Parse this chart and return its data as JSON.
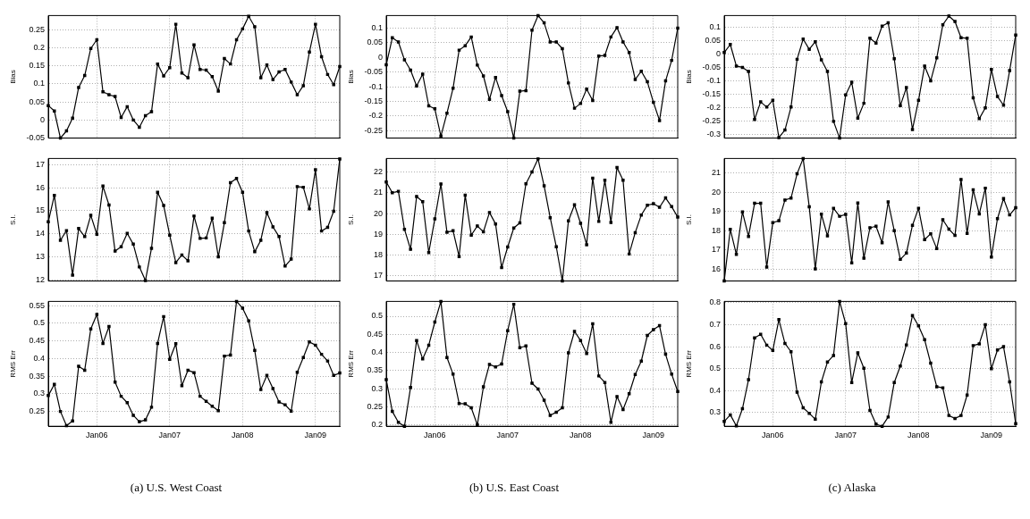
{
  "chart_data": [
    {
      "type": "line",
      "ylabel": "Bias",
      "color": "#000000",
      "marker": "square",
      "grid": true,
      "tick_labels": "y",
      "xlim": [
        "2005-05",
        "2009-05"
      ],
      "xticks": [
        {
          "value": "2006-01",
          "label": null
        },
        {
          "value": "2007-01",
          "label": null
        },
        {
          "value": "2008-01",
          "label": null
        },
        {
          "value": "2009-01",
          "label": null
        }
      ],
      "ylim": [
        -0.05,
        0.289
      ],
      "yticks": [
        -0.05,
        0,
        0.05,
        0.1,
        0.15,
        0.2,
        0.25
      ],
      "x": [
        "2005-05",
        "2005-06",
        "2005-07",
        "2005-08",
        "2005-09",
        "2005-10",
        "2005-11",
        "2005-12",
        "2006-01",
        "2006-02",
        "2006-03",
        "2006-04",
        "2006-05",
        "2006-06",
        "2006-07",
        "2006-08",
        "2006-09",
        "2006-10",
        "2006-11",
        "2006-12",
        "2007-01",
        "2007-02",
        "2007-03",
        "2007-04",
        "2007-05",
        "2007-06",
        "2007-07",
        "2007-08",
        "2007-09",
        "2007-10",
        "2007-11",
        "2007-12",
        "2008-01",
        "2008-02",
        "2008-03",
        "2008-04",
        "2008-05",
        "2008-06",
        "2008-07",
        "2008-08",
        "2008-09",
        "2008-10",
        "2008-11",
        "2008-12",
        "2009-01",
        "2009-02",
        "2009-03",
        "2009-04",
        "2009-05"
      ],
      "values": [
        0.04,
        0.025,
        -0.05,
        -0.03,
        0.005,
        0.09,
        0.123,
        0.198,
        0.222,
        0.078,
        0.07,
        0.065,
        0.007,
        0.037,
        0,
        -0.02,
        0.012,
        0.023,
        0.155,
        0.122,
        0.145,
        0.265,
        0.13,
        0.117,
        0.208,
        0.14,
        0.138,
        0.12,
        0.08,
        0.17,
        0.155,
        0.222,
        0.252,
        0.287,
        0.258,
        0.117,
        0.152,
        0.112,
        0.133,
        0.14,
        0.105,
        0.07,
        0.095,
        0.188,
        0.265,
        0.175,
        0.126,
        0.098,
        0.148
      ]
    },
    {
      "type": "line",
      "ylabel": "Bias",
      "color": "#000000",
      "marker": "square",
      "grid": true,
      "tick_labels": "y",
      "xlim": [
        "2005-05",
        "2009-05"
      ],
      "xticks": [
        {
          "value": "2006-01",
          "label": null
        },
        {
          "value": "2007-01",
          "label": null
        },
        {
          "value": "2008-01",
          "label": null
        },
        {
          "value": "2009-01",
          "label": null
        }
      ],
      "ylim": [
        -0.275,
        0.143
      ],
      "yticks": [
        -0.25,
        -0.2,
        -0.15,
        -0.1,
        -0.05,
        0,
        0.05,
        0.1
      ],
      "x": [
        "2005-05",
        "2005-06",
        "2005-07",
        "2005-08",
        "2005-09",
        "2005-10",
        "2005-11",
        "2005-12",
        "2006-01",
        "2006-02",
        "2006-03",
        "2006-04",
        "2006-05",
        "2006-06",
        "2006-07",
        "2006-08",
        "2006-09",
        "2006-10",
        "2006-11",
        "2006-12",
        "2007-01",
        "2007-02",
        "2007-03",
        "2007-04",
        "2007-05",
        "2007-06",
        "2007-07",
        "2007-08",
        "2007-09",
        "2007-10",
        "2007-11",
        "2007-12",
        "2008-01",
        "2008-02",
        "2008-03",
        "2008-04",
        "2008-05",
        "2008-06",
        "2008-07",
        "2008-08",
        "2008-09",
        "2008-10",
        "2008-11",
        "2008-12",
        "2009-01",
        "2009-02",
        "2009-03",
        "2009-04",
        "2009-05"
      ],
      "values": [
        -0.025,
        0.067,
        0.053,
        -0.008,
        -0.043,
        -0.097,
        -0.057,
        -0.165,
        -0.175,
        -0.268,
        -0.19,
        -0.105,
        0.025,
        0.04,
        0.07,
        -0.026,
        -0.063,
        -0.143,
        -0.068,
        -0.13,
        -0.185,
        -0.275,
        -0.115,
        -0.113,
        0.093,
        0.143,
        0.118,
        0.053,
        0.053,
        0.03,
        -0.087,
        -0.173,
        -0.157,
        -0.108,
        -0.147,
        0.005,
        0.007,
        0.07,
        0.102,
        0.053,
        0.017,
        -0.075,
        -0.047,
        -0.083,
        -0.153,
        -0.215,
        -0.08,
        -0.01,
        0.1
      ]
    },
    {
      "type": "line",
      "ylabel": "Bias",
      "color": "#000000",
      "marker": "square",
      "grid": true,
      "tick_labels": "y",
      "xlim": [
        "2005-05",
        "2009-05"
      ],
      "xticks": [
        {
          "value": "2006-01",
          "label": null
        },
        {
          "value": "2007-01",
          "label": null
        },
        {
          "value": "2008-01",
          "label": null
        },
        {
          "value": "2009-01",
          "label": null
        }
      ],
      "ylim": [
        -0.312,
        0.142
      ],
      "yticks": [
        -0.3,
        -0.25,
        -0.2,
        -0.15,
        -0.1,
        -0.05,
        0,
        0.05,
        0.1
      ],
      "x": [
        "2005-05",
        "2005-06",
        "2005-07",
        "2005-08",
        "2005-09",
        "2005-10",
        "2005-11",
        "2005-12",
        "2006-01",
        "2006-02",
        "2006-03",
        "2006-04",
        "2006-05",
        "2006-06",
        "2006-07",
        "2006-08",
        "2006-09",
        "2006-10",
        "2006-11",
        "2006-12",
        "2007-01",
        "2007-02",
        "2007-03",
        "2007-04",
        "2007-05",
        "2007-06",
        "2007-07",
        "2007-08",
        "2007-09",
        "2007-10",
        "2007-11",
        "2007-12",
        "2008-01",
        "2008-02",
        "2008-03",
        "2008-04",
        "2008-05",
        "2008-06",
        "2008-07",
        "2008-08",
        "2008-09",
        "2008-10",
        "2008-11",
        "2008-12",
        "2009-01",
        "2009-02",
        "2009-03",
        "2009-04",
        "2009-05"
      ],
      "values": [
        0.005,
        0.035,
        -0.045,
        -0.05,
        -0.065,
        -0.243,
        -0.178,
        -0.197,
        -0.172,
        -0.31,
        -0.282,
        -0.197,
        -0.02,
        0.055,
        0.017,
        0.045,
        -0.022,
        -0.065,
        -0.25,
        -0.312,
        -0.152,
        -0.105,
        -0.238,
        -0.183,
        0.058,
        0.04,
        0.103,
        0.115,
        -0.018,
        -0.192,
        -0.125,
        -0.28,
        -0.172,
        -0.045,
        -0.1,
        -0.015,
        0.108,
        0.14,
        0.12,
        0.06,
        0.058,
        -0.163,
        -0.24,
        -0.2,
        -0.058,
        -0.158,
        -0.19,
        -0.062,
        0.07
      ]
    },
    {
      "type": "line",
      "ylabel": "S.I.",
      "color": "#000000",
      "marker": "square",
      "grid": true,
      "tick_labels": "y",
      "xlim": [
        "2005-05",
        "2009-05"
      ],
      "xticks": [
        {
          "value": "2006-01",
          "label": null
        },
        {
          "value": "2007-01",
          "label": null
        },
        {
          "value": "2008-01",
          "label": null
        },
        {
          "value": "2009-01",
          "label": null
        }
      ],
      "ylim": [
        11.95,
        17.27
      ],
      "yticks": [
        12,
        13,
        14,
        15,
        16,
        17
      ],
      "x": [
        "2005-05",
        "2005-06",
        "2005-07",
        "2005-08",
        "2005-09",
        "2005-10",
        "2005-11",
        "2005-12",
        "2006-01",
        "2006-02",
        "2006-03",
        "2006-04",
        "2006-05",
        "2006-06",
        "2006-07",
        "2006-08",
        "2006-09",
        "2006-10",
        "2006-11",
        "2006-12",
        "2007-01",
        "2007-02",
        "2007-03",
        "2007-04",
        "2007-05",
        "2007-06",
        "2007-07",
        "2007-08",
        "2007-09",
        "2007-10",
        "2007-11",
        "2007-12",
        "2008-01",
        "2008-02",
        "2008-03",
        "2008-04",
        "2008-05",
        "2008-06",
        "2008-07",
        "2008-08",
        "2008-09",
        "2008-10",
        "2008-11",
        "2008-12",
        "2009-01",
        "2009-02",
        "2009-03",
        "2009-04",
        "2009-05"
      ],
      "values": [
        14.52,
        15.67,
        13.72,
        14.14,
        12.21,
        14.23,
        13.88,
        14.8,
        13.98,
        16.07,
        15.25,
        13.25,
        13.44,
        14.02,
        13.55,
        12.56,
        11.97,
        13.37,
        15.8,
        15.23,
        13.94,
        12.75,
        13.08,
        12.83,
        14.77,
        13.8,
        13.82,
        14.68,
        13,
        14.48,
        16.22,
        16.4,
        15.8,
        14.12,
        13.22,
        13.72,
        14.92,
        14.3,
        13.88,
        12.6,
        12.9,
        16.05,
        16.02,
        15.08,
        16.78,
        14.12,
        14.28,
        14.98,
        17.25
      ]
    },
    {
      "type": "line",
      "ylabel": "S.I.",
      "color": "#000000",
      "marker": "square",
      "grid": true,
      "tick_labels": "y",
      "xlim": [
        "2005-05",
        "2009-05"
      ],
      "xticks": [
        {
          "value": "2006-01",
          "label": null
        },
        {
          "value": "2007-01",
          "label": null
        },
        {
          "value": "2008-01",
          "label": null
        },
        {
          "value": "2009-01",
          "label": null
        }
      ],
      "ylim": [
        16.75,
        22.65
      ],
      "yticks": [
        17,
        18,
        19,
        20,
        21,
        22
      ],
      "x": [
        "2005-05",
        "2005-06",
        "2005-07",
        "2005-08",
        "2005-09",
        "2005-10",
        "2005-11",
        "2005-12",
        "2006-01",
        "2006-02",
        "2006-03",
        "2006-04",
        "2006-05",
        "2006-06",
        "2006-07",
        "2006-08",
        "2006-09",
        "2006-10",
        "2006-11",
        "2006-12",
        "2007-01",
        "2007-02",
        "2007-03",
        "2007-04",
        "2007-05",
        "2007-06",
        "2007-07",
        "2007-08",
        "2007-09",
        "2007-10",
        "2007-11",
        "2007-12",
        "2008-01",
        "2008-02",
        "2008-03",
        "2008-04",
        "2008-05",
        "2008-06",
        "2008-07",
        "2008-08",
        "2008-09",
        "2008-10",
        "2008-11",
        "2008-12",
        "2009-01",
        "2009-02",
        "2009-03",
        "2009-04",
        "2009-05"
      ],
      "values": [
        21.52,
        21,
        21.07,
        19.24,
        18.28,
        20.82,
        20.57,
        18.12,
        19.74,
        21.42,
        19.1,
        19.17,
        17.93,
        20.88,
        18.96,
        19.4,
        19.12,
        20.05,
        19.5,
        17.4,
        18.39,
        19.3,
        19.55,
        21.43,
        22,
        22.63,
        21.33,
        19.8,
        18.4,
        16.75,
        19.65,
        20.42,
        19.53,
        18.5,
        21.7,
        19.62,
        21.6,
        19.57,
        22.22,
        21.6,
        18.05,
        19.08,
        19.93,
        20.4,
        20.47,
        20.3,
        20.75,
        20.33,
        19.83
      ]
    },
    {
      "type": "line",
      "ylabel": "S.I.",
      "color": "#000000",
      "marker": "square",
      "grid": true,
      "tick_labels": "y",
      "xlim": [
        "2005-05",
        "2009-05"
      ],
      "xticks": [
        {
          "value": "2006-01",
          "label": null
        },
        {
          "value": "2007-01",
          "label": null
        },
        {
          "value": "2008-01",
          "label": null
        },
        {
          "value": "2009-01",
          "label": null
        }
      ],
      "ylim": [
        15.37,
        21.77
      ],
      "yticks": [
        16,
        17,
        18,
        19,
        20,
        21
      ],
      "x": [
        "2005-05",
        "2005-06",
        "2005-07",
        "2005-08",
        "2005-09",
        "2005-10",
        "2005-11",
        "2005-12",
        "2006-01",
        "2006-02",
        "2006-03",
        "2006-04",
        "2006-05",
        "2006-06",
        "2006-07",
        "2006-08",
        "2006-09",
        "2006-10",
        "2006-11",
        "2006-12",
        "2007-01",
        "2007-02",
        "2007-03",
        "2007-04",
        "2007-05",
        "2007-06",
        "2007-07",
        "2007-08",
        "2007-09",
        "2007-10",
        "2007-11",
        "2007-12",
        "2008-01",
        "2008-02",
        "2008-03",
        "2008-04",
        "2008-05",
        "2008-06",
        "2008-07",
        "2008-08",
        "2008-09",
        "2008-10",
        "2008-11",
        "2008-12",
        "2009-01",
        "2009-02",
        "2009-03",
        "2009-04",
        "2009-05"
      ],
      "values": [
        15.37,
        18.07,
        16.76,
        18.98,
        17.7,
        19.43,
        19.43,
        16.1,
        18.42,
        18.52,
        19.6,
        19.7,
        20.97,
        21.77,
        19.25,
        16,
        18.86,
        17.73,
        19.17,
        18.75,
        18.85,
        16.32,
        19.44,
        16.56,
        18.15,
        18.23,
        17.37,
        19.5,
        18,
        16.5,
        16.83,
        18.28,
        19.17,
        17.53,
        17.84,
        17.06,
        18.57,
        18.08,
        17.75,
        20.67,
        17.86,
        20.13,
        18.87,
        20.22,
        16.62,
        18.63,
        19.68,
        18.82,
        19.2
      ]
    },
    {
      "type": "line",
      "ylabel": "RMS Err",
      "color": "#000000",
      "marker": "square",
      "grid": true,
      "xlim": [
        "2005-05",
        "2009-05"
      ],
      "xticks": [
        {
          "value": "2006-01",
          "label": "Jan06"
        },
        {
          "value": "2007-01",
          "label": "Jan07"
        },
        {
          "value": "2008-01",
          "label": "Jan08"
        },
        {
          "value": "2009-01",
          "label": "Jan09"
        }
      ],
      "ylim": [
        0.208,
        0.562
      ],
      "yticks": [
        0.25,
        0.3,
        0.35,
        0.4,
        0.45,
        0.5,
        0.55
      ],
      "annotations": [
        "(a) U.S. West Coast"
      ],
      "x": [
        "2005-05",
        "2005-06",
        "2005-07",
        "2005-08",
        "2005-09",
        "2005-10",
        "2005-11",
        "2005-12",
        "2006-01",
        "2006-02",
        "2006-03",
        "2006-04",
        "2006-05",
        "2006-06",
        "2006-07",
        "2006-08",
        "2006-09",
        "2006-10",
        "2006-11",
        "2006-12",
        "2007-01",
        "2007-02",
        "2007-03",
        "2007-04",
        "2007-05",
        "2007-06",
        "2007-07",
        "2007-08",
        "2007-09",
        "2007-10",
        "2007-11",
        "2007-12",
        "2008-01",
        "2008-02",
        "2008-03",
        "2008-04",
        "2008-05",
        "2008-06",
        "2008-07",
        "2008-08",
        "2008-09",
        "2008-10",
        "2008-11",
        "2008-12",
        "2009-01",
        "2009-02",
        "2009-03",
        "2009-04",
        "2009-05"
      ],
      "values": [
        0.295,
        0.327,
        0.25,
        0.21,
        0.223,
        0.378,
        0.367,
        0.484,
        0.525,
        0.443,
        0.491,
        0.333,
        0.293,
        0.275,
        0.239,
        0.221,
        0.226,
        0.262,
        0.443,
        0.519,
        0.398,
        0.442,
        0.323,
        0.367,
        0.36,
        0.293,
        0.279,
        0.265,
        0.252,
        0.407,
        0.41,
        0.562,
        0.543,
        0.507,
        0.423,
        0.312,
        0.352,
        0.315,
        0.277,
        0.269,
        0.251,
        0.361,
        0.403,
        0.447,
        0.438,
        0.412,
        0.393,
        0.352,
        0.359
      ]
    },
    {
      "type": "line",
      "ylabel": "RMS Err",
      "color": "#000000",
      "marker": "square",
      "grid": true,
      "xlim": [
        "2005-05",
        "2009-05"
      ],
      "xticks": [
        {
          "value": "2006-01",
          "label": "Jan06"
        },
        {
          "value": "2007-01",
          "label": "Jan07"
        },
        {
          "value": "2008-01",
          "label": "Jan08"
        },
        {
          "value": "2009-01",
          "label": "Jan09"
        }
      ],
      "ylim": [
        0.196,
        0.541
      ],
      "yticks": [
        0.2,
        0.25,
        0.3,
        0.35,
        0.4,
        0.45,
        0.5
      ],
      "annotations": [
        "(b) U.S. East Coast"
      ],
      "x": [
        "2005-05",
        "2005-06",
        "2005-07",
        "2005-08",
        "2005-09",
        "2005-10",
        "2005-11",
        "2005-12",
        "2006-01",
        "2006-02",
        "2006-03",
        "2006-04",
        "2006-05",
        "2006-06",
        "2006-07",
        "2006-08",
        "2006-09",
        "2006-10",
        "2006-11",
        "2006-12",
        "2007-01",
        "2007-02",
        "2007-03",
        "2007-04",
        "2007-05",
        "2007-06",
        "2007-07",
        "2007-08",
        "2007-09",
        "2007-10",
        "2007-11",
        "2007-12",
        "2008-01",
        "2008-02",
        "2008-03",
        "2008-04",
        "2008-05",
        "2008-06",
        "2008-07",
        "2008-08",
        "2008-09",
        "2008-10",
        "2008-11",
        "2008-12",
        "2009-01",
        "2009-02",
        "2009-03",
        "2009-04",
        "2009-05"
      ],
      "values": [
        0.325,
        0.237,
        0.207,
        0.196,
        0.303,
        0.433,
        0.382,
        0.42,
        0.484,
        0.541,
        0.386,
        0.34,
        0.259,
        0.258,
        0.247,
        0.2,
        0.305,
        0.367,
        0.36,
        0.368,
        0.46,
        0.533,
        0.413,
        0.418,
        0.315,
        0.299,
        0.268,
        0.226,
        0.235,
        0.247,
        0.399,
        0.458,
        0.433,
        0.397,
        0.479,
        0.335,
        0.317,
        0.207,
        0.278,
        0.242,
        0.286,
        0.339,
        0.376,
        0.447,
        0.463,
        0.474,
        0.395,
        0.34,
        0.292
      ]
    },
    {
      "type": "line",
      "ylabel": "RMS Err",
      "color": "#000000",
      "marker": "square",
      "grid": true,
      "xlim": [
        "2005-05",
        "2009-05"
      ],
      "xticks": [
        {
          "value": "2006-01",
          "label": "Jan06"
        },
        {
          "value": "2007-01",
          "label": "Jan07"
        },
        {
          "value": "2008-01",
          "label": "Jan08"
        },
        {
          "value": "2009-01",
          "label": "Jan09"
        }
      ],
      "ylim": [
        0.238,
        0.806
      ],
      "yticks": [
        0.3,
        0.4,
        0.5,
        0.6,
        0.7,
        0.8
      ],
      "annotations": [
        "(c) Alaska"
      ],
      "x": [
        "2005-05",
        "2005-06",
        "2005-07",
        "2005-08",
        "2005-09",
        "2005-10",
        "2005-11",
        "2005-12",
        "2006-01",
        "2006-02",
        "2006-03",
        "2006-04",
        "2006-05",
        "2006-06",
        "2006-07",
        "2006-08",
        "2006-09",
        "2006-10",
        "2006-11",
        "2006-12",
        "2007-01",
        "2007-02",
        "2007-03",
        "2007-04",
        "2007-05",
        "2007-06",
        "2007-07",
        "2007-08",
        "2007-09",
        "2007-10",
        "2007-11",
        "2007-12",
        "2008-01",
        "2008-02",
        "2008-03",
        "2008-04",
        "2008-05",
        "2008-06",
        "2008-07",
        "2008-08",
        "2008-09",
        "2008-10",
        "2008-11",
        "2008-12",
        "2009-01",
        "2009-02",
        "2009-03",
        "2009-04",
        "2009-05"
      ],
      "values": [
        0.26,
        0.29,
        0.24,
        0.318,
        0.45,
        0.64,
        0.656,
        0.607,
        0.583,
        0.723,
        0.615,
        0.577,
        0.393,
        0.322,
        0.297,
        0.27,
        0.44,
        0.53,
        0.56,
        0.806,
        0.705,
        0.437,
        0.572,
        0.502,
        0.31,
        0.248,
        0.238,
        0.28,
        0.437,
        0.512,
        0.608,
        0.742,
        0.695,
        0.632,
        0.525,
        0.418,
        0.413,
        0.287,
        0.273,
        0.287,
        0.38,
        0.605,
        0.613,
        0.7,
        0.5,
        0.585,
        0.6,
        0.44,
        0.25
      ]
    }
  ]
}
